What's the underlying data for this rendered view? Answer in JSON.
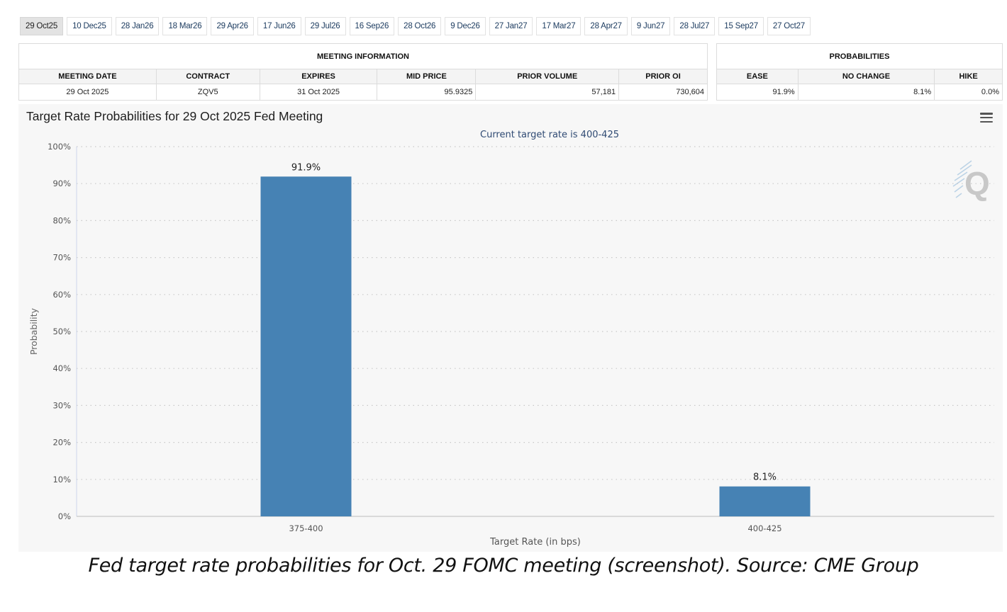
{
  "tabs": [
    "29 Oct25",
    "10 Dec25",
    "28 Jan26",
    "18 Mar26",
    "29 Apr26",
    "17 Jun26",
    "29 Jul26",
    "16 Sep26",
    "28 Oct26",
    "9 Dec26",
    "27 Jan27",
    "17 Mar27",
    "28 Apr27",
    "9 Jun27",
    "28 Jul27",
    "15 Sep27",
    "27 Oct27"
  ],
  "active_tab": "29 Oct25",
  "meeting_info": {
    "heading": "MEETING INFORMATION",
    "headers": [
      "MEETING DATE",
      "CONTRACT",
      "EXPIRES",
      "MID PRICE",
      "PRIOR VOLUME",
      "PRIOR OI"
    ],
    "row": [
      "29 Oct 2025",
      "ZQV5",
      "31 Oct 2025",
      "95.9325",
      "57,181",
      "730,604"
    ]
  },
  "probabilities": {
    "heading": "PROBABILITIES",
    "headers": [
      "EASE",
      "NO CHANGE",
      "HIKE"
    ],
    "row": [
      "91.9%",
      "8.1%",
      "0.0%"
    ]
  },
  "chart": {
    "menu_icon": "hamburger-menu-icon",
    "watermark_icon": "quikstrike-q-logo"
  },
  "chart_data": {
    "type": "bar",
    "title": "Target Rate Probabilities for 29 Oct 2025 Fed Meeting",
    "subtitle": "Current target rate is 400-425",
    "xlabel": "Target Rate (in bps)",
    "ylabel": "Probability",
    "categories": [
      "375-400",
      "400-425"
    ],
    "values": [
      91.9,
      8.1
    ],
    "data_labels": [
      "91.9%",
      "8.1%"
    ],
    "ylim": [
      0,
      100
    ],
    "yticks": [
      "0%",
      "10%",
      "20%",
      "30%",
      "40%",
      "50%",
      "60%",
      "70%",
      "80%",
      "90%",
      "100%"
    ],
    "grid": true,
    "bar_color": "#4682b4"
  },
  "caption": "Fed target rate probabilities for Oct. 29 FOMC meeting (screenshot). Source: CME Group"
}
